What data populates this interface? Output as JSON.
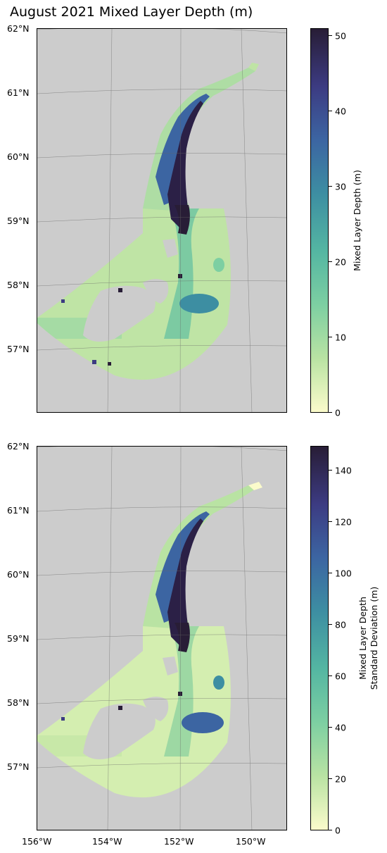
{
  "title": "August 2021 Mixed Layer Depth (m)",
  "colors": {
    "land": "#cccccc",
    "ocean_background": "#ffffff",
    "grid": "#666666"
  },
  "latitude_labels": [
    "62°N",
    "61°N",
    "60°N",
    "59°N",
    "58°N",
    "57°N"
  ],
  "longitude_labels": [
    "156°W",
    "154°W",
    "152°W",
    "150°W"
  ],
  "panels": [
    {
      "colorbar_label": "Mixed Layer Depth (m)",
      "colorbar_ticks": [
        "0",
        "10",
        "20",
        "30",
        "40",
        "50"
      ],
      "colorbar_range": [
        0,
        51
      ]
    },
    {
      "colorbar_label_line1": "Mixed Layer Depth",
      "colorbar_label_line2": "Standard Deviation (m)",
      "colorbar_ticks": [
        "0",
        "20",
        "40",
        "60",
        "80",
        "100",
        "120",
        "140"
      ],
      "colorbar_range": [
        0,
        149
      ]
    }
  ]
}
